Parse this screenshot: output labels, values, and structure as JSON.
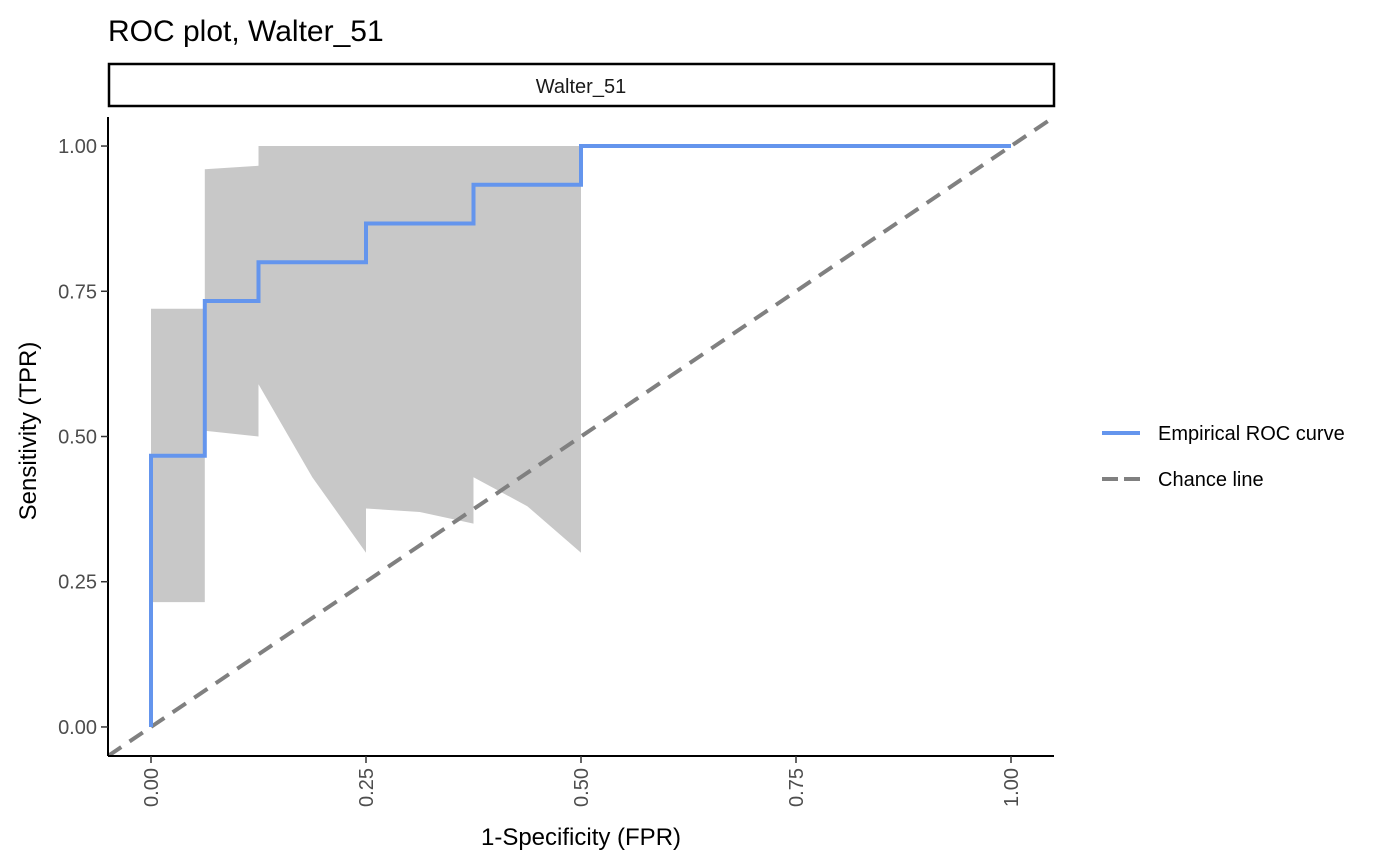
{
  "chart_data": {
    "type": "line",
    "title": "ROC plot, Walter_51",
    "facet_label": "Walter_51",
    "xlabel": "1-Specificity (FPR)",
    "ylabel": "Sensitivity (TPR)",
    "xlim": [
      -0.05,
      1.05
    ],
    "ylim": [
      -0.05,
      1.05
    ],
    "x_ticks": [
      0,
      0.25,
      0.5,
      0.75,
      1
    ],
    "x_tick_labels": [
      "0.00",
      "0.25",
      "0.50",
      "0.75",
      "1.00"
    ],
    "y_ticks": [
      0,
      0.25,
      0.5,
      0.75,
      1
    ],
    "y_tick_labels": [
      "0.00",
      "0.25",
      "0.50",
      "0.75",
      "1.00"
    ],
    "grid": false,
    "legend_position": "right",
    "series": [
      {
        "name": "Empirical ROC curve",
        "color": "#6495ED",
        "style": "solid",
        "x": [
          0,
          0,
          0.0625,
          0.0625,
          0.125,
          0.125,
          0.25,
          0.25,
          0.375,
          0.375,
          0.5,
          0.5,
          1.0
        ],
        "y": [
          0,
          0.4667,
          0.4667,
          0.7333,
          0.7333,
          0.8,
          0.8,
          0.8667,
          0.8667,
          0.9333,
          0.9333,
          1.0,
          1.0
        ]
      },
      {
        "name": "Chance line",
        "color": "#808080",
        "style": "dashed",
        "x": [
          -0.05,
          1.05
        ],
        "y": [
          -0.05,
          1.05
        ]
      }
    ],
    "confidence_band": {
      "color": "#C8C8C8",
      "x": [
        0,
        0.0625,
        0.0625,
        0.125,
        0.125,
        0.1875,
        0.25,
        0.25,
        0.3125,
        0.375,
        0.375,
        0.4375,
        0.5
      ],
      "lower": [
        0.215,
        0.215,
        0.51,
        0.5,
        0.59,
        0.43,
        0.3,
        0.376,
        0.37,
        0.35,
        0.43,
        0.38,
        0.3
      ],
      "upper": [
        0.72,
        0.72,
        0.96,
        0.966,
        1.0,
        1.0,
        1.0,
        1.0,
        1.0,
        1.0,
        1.0,
        1.0,
        1.0
      ]
    }
  }
}
